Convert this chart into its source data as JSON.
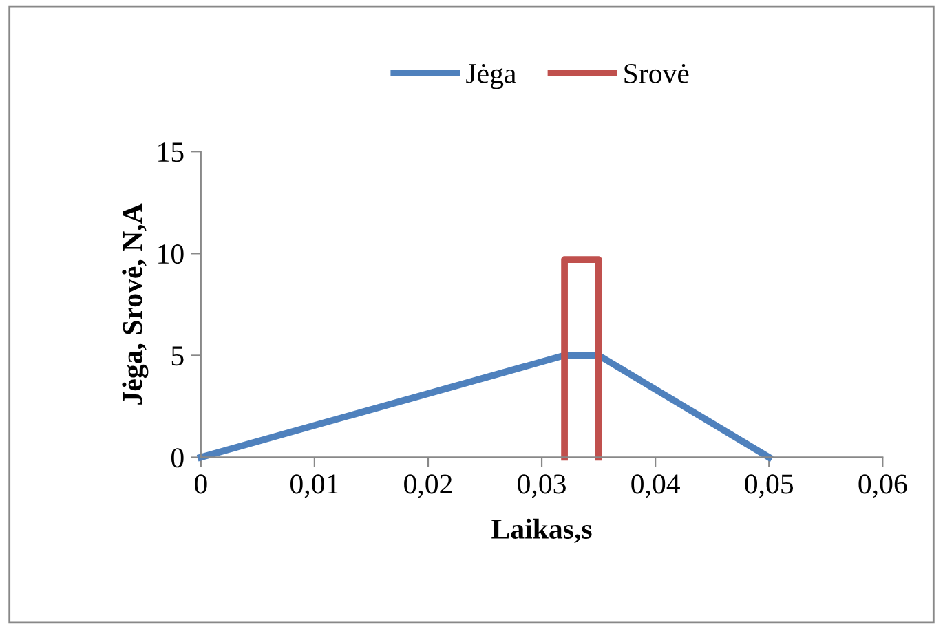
{
  "chart_data": {
    "type": "line",
    "xlabel": "Laikas,s",
    "ylabel": "Jėga, Srovė, N,A",
    "series": [
      {
        "name": "Jėga",
        "color": "#4f81bd",
        "x": [
          0,
          0.032,
          0.035,
          0.05
        ],
        "values": [
          0,
          5,
          5,
          0
        ]
      },
      {
        "name": "Srovė",
        "color": "#c0504d",
        "x": [
          0.032,
          0.032,
          0.035,
          0.035
        ],
        "values": [
          0,
          9.7,
          9.7,
          0
        ]
      }
    ],
    "xlim": [
      0,
      0.06
    ],
    "xticks": [
      0,
      {
        "value": 0.01,
        "label": "0,01"
      },
      {
        "value": 0.02,
        "label": "0,02"
      },
      {
        "value": 0.03,
        "label": "0,03"
      },
      {
        "value": 0.04,
        "label": "0,04"
      },
      {
        "value": 0.05,
        "label": "0,05"
      },
      {
        "value": 0.06,
        "label": "0,06"
      }
    ],
    "ylim": [
      0,
      15
    ],
    "yticks": [
      0,
      5,
      10,
      15
    ],
    "grid": false,
    "legend": "top",
    "marker": "none",
    "line_style": "solid"
  }
}
